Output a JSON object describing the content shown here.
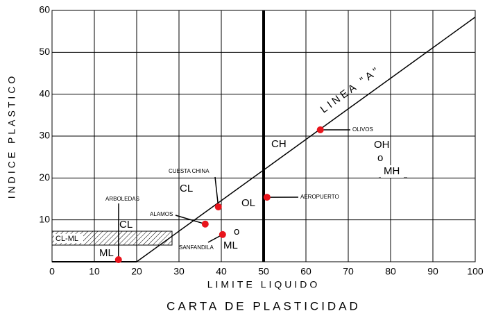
{
  "chart_data": {
    "type": "scatter",
    "title": "CARTA DE PLASTICIDAD",
    "x_label": "LIMITE LIQUIDO",
    "y_label": "INDICE PLASTICO",
    "labels": [
      "OLIVOS",
      "AEROPUERTO",
      "CUESTA CHINA",
      "ALAMOS",
      "SANFANDILA",
      "ARBOLEDAS"
    ],
    "x": [
      63.4,
      50.8,
      39.3,
      36.2,
      40.3,
      15.7
    ],
    "values": [
      31.5,
      15.4,
      13.1,
      9.0,
      6.5,
      0.5
    ],
    "color": "#e8141c",
    "xlim": [
      0,
      100
    ],
    "xticks": [
      0,
      10,
      20,
      30,
      40,
      50,
      60,
      70,
      80,
      90,
      100
    ],
    "ylim": [
      0,
      60
    ],
    "yticks": [
      10,
      20,
      30,
      40,
      50,
      60
    ],
    "grid": true,
    "annotations": [
      "CH",
      "CL",
      "OL",
      "OH",
      "o",
      "MH",
      "CL",
      "CL-ML",
      "ML",
      "o",
      "ML",
      "LINEA \"A\""
    ]
  }
}
